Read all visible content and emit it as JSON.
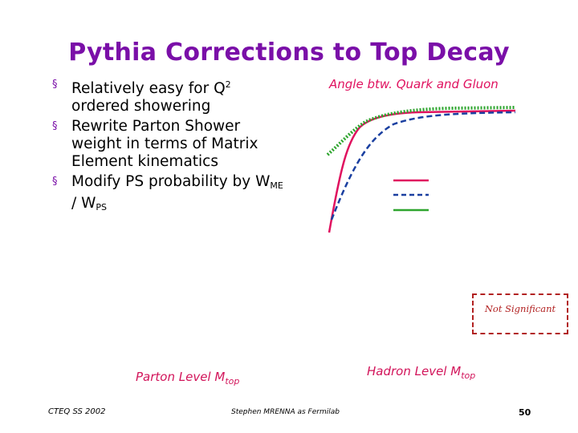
{
  "slide": {
    "title": "Pythia Corrections to Top Decay",
    "bullets": [
      {
        "text": "Relatively easy for Q",
        "sup": "2",
        "rest": " ordered showering"
      },
      {
        "text": "Rewrite Parton Shower weight in terms of Matrix Element kinematics"
      },
      {
        "w1": "W",
        "w1_sub": "ME",
        "sep": " / ",
        "w2": "W",
        "w2_sub": "PS",
        "text": "Modify PS probability by "
      }
    ],
    "bullet_symbol": "§",
    "angle_label": "Angle btw. Quark and Gluon",
    "not_significant": "Not Significant",
    "parton_label": {
      "text": "Parton Level M",
      "sub": "top"
    },
    "hadron_label": {
      "text": "Hadron Level M",
      "sub": "top"
    },
    "footer_left": "CTEQ SS 2002",
    "footer_mid": "Stephen MRENNA as Fermilab",
    "page_number": "50"
  },
  "colors": {
    "title": "#7a0fa8",
    "curve_solid": "#e0115f",
    "curve_dashed": "#1a3fa0",
    "curve_dotted": "#2ea52e",
    "caption": "#d2145a",
    "box": "#b22222"
  }
}
